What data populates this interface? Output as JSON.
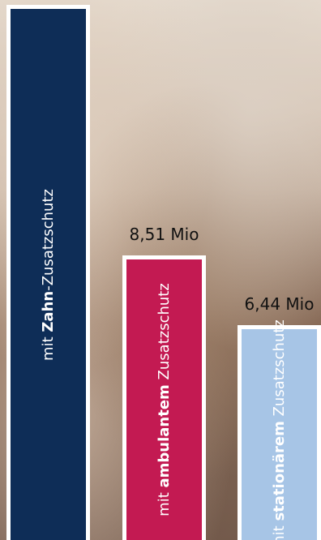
{
  "chart_data": {
    "type": "bar",
    "categories": [
      {
        "prefix": "mit ",
        "bold": "Zahn",
        "suffix": "-Zusatzschutz"
      },
      {
        "prefix": "mit ",
        "bold": "ambulantem",
        "suffix": " Zusatzschutz"
      },
      {
        "prefix": "mit ",
        "bold": "stationärem",
        "suffix": " Zusatzschutz"
      }
    ],
    "values": [
      null,
      8.51,
      6.44
    ],
    "value_labels": [
      "",
      "8,51 Mio",
      "6,44 Mio"
    ],
    "colors": [
      "#0e2d57",
      "#c31a52",
      "#a7c5e6"
    ]
  }
}
